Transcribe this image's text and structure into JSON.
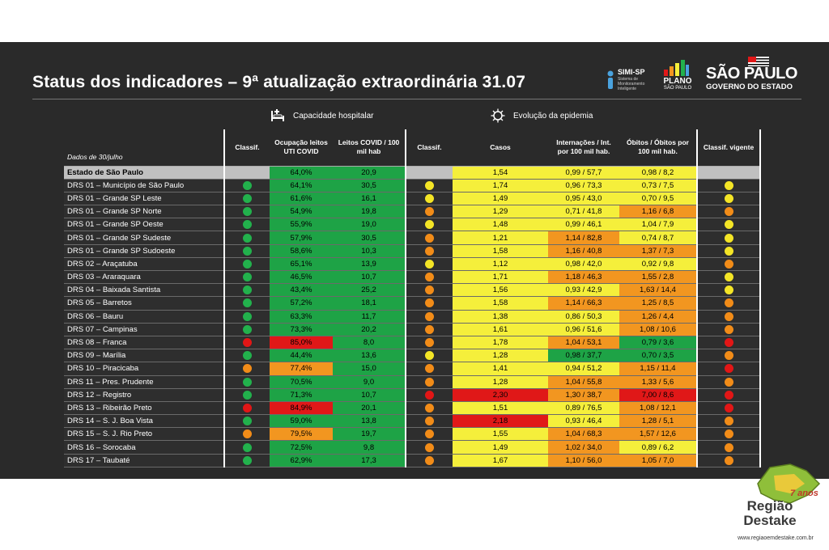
{
  "title": "Status dos indicadores – 9ª atualização extraordinária 31.07",
  "logos": {
    "simi": {
      "name": "SIMI-SP",
      "subtitle": "Sistema de Monitoramento Inteligente"
    },
    "plano": {
      "name": "PLANO",
      "subtitle": "SÃO PAULO"
    },
    "sp": {
      "name": "SÃO PAULO",
      "subtitle": "GOVERNO DO ESTADO"
    }
  },
  "sections": {
    "capacity": "Capacidade hospitalar",
    "evolution": "Evolução da epidemia"
  },
  "headers": {
    "date": "Dados de 30/julho",
    "classif1": "Classif.",
    "ocupacao": "Ocupação leitos UTI COVID",
    "leitos": "Leitos COVID / 100 mil hab",
    "classif2": "Classif.",
    "casos": "Casos",
    "internacoes": "Internações / Int. por 100 mil hab.",
    "obitos": "Óbitos / Óbitos por 100 mil hab.",
    "vigente": "Classif. vigente"
  },
  "colors": {
    "green": "#1ea346",
    "yellow": "#f5ef3b",
    "orange": "#f29620",
    "red": "#e01818",
    "dot_green": "#22b14c",
    "dot_yellow": "#f4e526",
    "dot_orange": "#f28c18",
    "dot_red": "#e21616"
  },
  "rows": [
    {
      "name": "Estado de São Paulo",
      "state": true,
      "c1": "",
      "ocup": "64,0%",
      "ocup_c": "green",
      "leitos": "20,9",
      "leitos_c": "green",
      "c2": "",
      "casos": "1,54",
      "casos_c": "yellow",
      "int": "0,99 / 57,7",
      "int_c": "yellow",
      "obi": "0,98 / 8,2",
      "obi_c": "yellow",
      "cv": ""
    },
    {
      "name": "DRS 01 – Município de São Paulo",
      "c1": "green",
      "ocup": "64,1%",
      "ocup_c": "green",
      "leitos": "30,5",
      "leitos_c": "green",
      "c2": "yellow",
      "casos": "1,74",
      "casos_c": "yellow",
      "int": "0,96 / 73,3",
      "int_c": "yellow",
      "obi": "0,73 / 7,5",
      "obi_c": "yellow",
      "cv": "yellow"
    },
    {
      "name": "DRS 01 – Grande SP Leste",
      "c1": "green",
      "ocup": "61,6%",
      "ocup_c": "green",
      "leitos": "16,1",
      "leitos_c": "green",
      "c2": "yellow",
      "casos": "1,49",
      "casos_c": "yellow",
      "int": "0,95 / 43,0",
      "int_c": "yellow",
      "obi": "0,70 / 9,5",
      "obi_c": "yellow",
      "cv": "yellow"
    },
    {
      "name": "DRS 01 – Grande SP Norte",
      "c1": "green",
      "ocup": "54,9%",
      "ocup_c": "green",
      "leitos": "19,8",
      "leitos_c": "green",
      "c2": "orange",
      "casos": "1,29",
      "casos_c": "yellow",
      "int": "0,71 / 41,8",
      "int_c": "yellow",
      "obi": "1,16 / 6,8",
      "obi_c": "orange",
      "cv": "orange"
    },
    {
      "name": "DRS 01 – Grande SP Oeste",
      "c1": "green",
      "ocup": "55,9%",
      "ocup_c": "green",
      "leitos": "19,0",
      "leitos_c": "green",
      "c2": "yellow",
      "casos": "1,48",
      "casos_c": "yellow",
      "int": "0,99 / 46,1",
      "int_c": "yellow",
      "obi": "1,04 / 7,9",
      "obi_c": "yellow",
      "cv": "yellow"
    },
    {
      "name": "DRS 01 – Grande SP Sudeste",
      "c1": "green",
      "ocup": "57,9%",
      "ocup_c": "green",
      "leitos": "30,5",
      "leitos_c": "green",
      "c2": "orange",
      "casos": "1,21",
      "casos_c": "yellow",
      "int": "1,14 / 82,8",
      "int_c": "orange",
      "obi": "0,74 / 8,7",
      "obi_c": "yellow",
      "cv": "yellow"
    },
    {
      "name": "DRS 01 – Grande SP Sudoeste",
      "c1": "green",
      "ocup": "58,6%",
      "ocup_c": "green",
      "leitos": "10,3",
      "leitos_c": "green",
      "c2": "orange",
      "casos": "1,58",
      "casos_c": "yellow",
      "int": "1,16 / 40,8",
      "int_c": "orange",
      "obi": "1,37 / 7,3",
      "obi_c": "orange",
      "cv": "yellow"
    },
    {
      "name": "DRS 02 – Araçatuba",
      "c1": "green",
      "ocup": "65,1%",
      "ocup_c": "green",
      "leitos": "13,9",
      "leitos_c": "green",
      "c2": "yellow",
      "casos": "1,12",
      "casos_c": "yellow",
      "int": "0,98 / 42,0",
      "int_c": "yellow",
      "obi": "0,92 / 9,8",
      "obi_c": "yellow",
      "cv": "orange"
    },
    {
      "name": "DRS 03 – Araraquara",
      "c1": "green",
      "ocup": "46,5%",
      "ocup_c": "green",
      "leitos": "10,7",
      "leitos_c": "green",
      "c2": "orange",
      "casos": "1,71",
      "casos_c": "yellow",
      "int": "1,18 / 46,3",
      "int_c": "orange",
      "obi": "1,55 / 2,8",
      "obi_c": "orange",
      "cv": "yellow"
    },
    {
      "name": "DRS 04 – Baixada Santista",
      "c1": "green",
      "ocup": "43,4%",
      "ocup_c": "green",
      "leitos": "25,2",
      "leitos_c": "green",
      "c2": "orange",
      "casos": "1,56",
      "casos_c": "yellow",
      "int": "0,93 / 42,9",
      "int_c": "yellow",
      "obi": "1,63 / 14,4",
      "obi_c": "orange",
      "cv": "yellow"
    },
    {
      "name": "DRS 05 – Barretos",
      "c1": "green",
      "ocup": "57,2%",
      "ocup_c": "green",
      "leitos": "18,1",
      "leitos_c": "green",
      "c2": "orange",
      "casos": "1,58",
      "casos_c": "yellow",
      "int": "1,14 / 66,3",
      "int_c": "orange",
      "obi": "1,25 / 8,5",
      "obi_c": "orange",
      "cv": "orange"
    },
    {
      "name": "DRS 06 – Bauru",
      "c1": "green",
      "ocup": "63,3%",
      "ocup_c": "green",
      "leitos": "11,7",
      "leitos_c": "green",
      "c2": "orange",
      "casos": "1,38",
      "casos_c": "yellow",
      "int": "0,86 / 50,3",
      "int_c": "yellow",
      "obi": "1,26 / 4,4",
      "obi_c": "orange",
      "cv": "orange"
    },
    {
      "name": "DRS 07 – Campinas",
      "c1": "green",
      "ocup": "73,3%",
      "ocup_c": "green",
      "leitos": "20,2",
      "leitos_c": "green",
      "c2": "orange",
      "casos": "1,61",
      "casos_c": "yellow",
      "int": "0,96 / 51,6",
      "int_c": "yellow",
      "obi": "1,08 / 10,6",
      "obi_c": "orange",
      "cv": "orange"
    },
    {
      "name": "DRS 08 – Franca",
      "c1": "red",
      "ocup": "85,0%",
      "ocup_c": "red",
      "leitos": "8,0",
      "leitos_c": "green",
      "c2": "orange",
      "casos": "1,78",
      "casos_c": "yellow",
      "int": "1,04 / 53,1",
      "int_c": "orange",
      "obi": "0,79 / 3,6",
      "obi_c": "green",
      "cv": "red"
    },
    {
      "name": "DRS 09 – Marília",
      "c1": "green",
      "ocup": "44,4%",
      "ocup_c": "green",
      "leitos": "13,6",
      "leitos_c": "green",
      "c2": "yellow",
      "casos": "1,28",
      "casos_c": "yellow",
      "int": "0,98 / 37,7",
      "int_c": "green",
      "obi": "0,70 / 3,5",
      "obi_c": "green",
      "cv": "orange"
    },
    {
      "name": "DRS 10 – Piracicaba",
      "c1": "orange",
      "ocup": "77,4%",
      "ocup_c": "orange",
      "leitos": "15,0",
      "leitos_c": "green",
      "c2": "orange",
      "casos": "1,41",
      "casos_c": "yellow",
      "int": "0,94 / 51,2",
      "int_c": "yellow",
      "obi": "1,15 / 11,4",
      "obi_c": "orange",
      "cv": "red"
    },
    {
      "name": "DRS 11 – Pres. Prudente",
      "c1": "green",
      "ocup": "70,5%",
      "ocup_c": "green",
      "leitos": "9,0",
      "leitos_c": "green",
      "c2": "orange",
      "casos": "1,28",
      "casos_c": "yellow",
      "int": "1,04 / 55,8",
      "int_c": "orange",
      "obi": "1,33 / 5,6",
      "obi_c": "orange",
      "cv": "orange"
    },
    {
      "name": "DRS 12 – Registro",
      "c1": "green",
      "ocup": "71,3%",
      "ocup_c": "green",
      "leitos": "10,7",
      "leitos_c": "green",
      "c2": "red",
      "casos": "2,30",
      "casos_c": "red",
      "int": "1,30 / 38,7",
      "int_c": "orange",
      "obi": "7,00 / 8,6",
      "obi_c": "red",
      "cv": "red"
    },
    {
      "name": "DRS 13 – Ribeirão Preto",
      "c1": "red",
      "ocup": "84,9%",
      "ocup_c": "red",
      "leitos": "20,1",
      "leitos_c": "green",
      "c2": "orange",
      "casos": "1,51",
      "casos_c": "yellow",
      "int": "0,89 / 76,5",
      "int_c": "yellow",
      "obi": "1,08 / 12,1",
      "obi_c": "orange",
      "cv": "red"
    },
    {
      "name": "DRS 14 – S. J. Boa Vista",
      "c1": "green",
      "ocup": "59,0%",
      "ocup_c": "green",
      "leitos": "13,8",
      "leitos_c": "green",
      "c2": "orange",
      "casos": "2,18",
      "casos_c": "red",
      "int": "0,93 / 46,4",
      "int_c": "yellow",
      "obi": "1,28 / 5,1",
      "obi_c": "orange",
      "cv": "orange"
    },
    {
      "name": "DRS 15 – S. J. Rio Preto",
      "c1": "orange",
      "ocup": "79,5%",
      "ocup_c": "orange",
      "leitos": "19,7",
      "leitos_c": "green",
      "c2": "orange",
      "casos": "1,55",
      "casos_c": "yellow",
      "int": "1,04 / 68,3",
      "int_c": "orange",
      "obi": "1,57 / 12,6",
      "obi_c": "orange",
      "cv": "orange"
    },
    {
      "name": "DRS 16 – Sorocaba",
      "c1": "green",
      "ocup": "72,5%",
      "ocup_c": "green",
      "leitos": "9,8",
      "leitos_c": "green",
      "c2": "orange",
      "casos": "1,49",
      "casos_c": "yellow",
      "int": "1,02 / 34,0",
      "int_c": "orange",
      "obi": "0,89 / 6,2",
      "obi_c": "yellow",
      "cv": "orange"
    },
    {
      "name": "DRS 17 – Taubaté",
      "c1": "green",
      "ocup": "62,9%",
      "ocup_c": "green",
      "leitos": "17,3",
      "leitos_c": "green",
      "c2": "orange",
      "casos": "1,67",
      "casos_c": "yellow",
      "int": "1,10 / 56,0",
      "int_c": "orange",
      "obi": "1,05 / 7,0",
      "obi_c": "orange",
      "cv": "orange"
    }
  ],
  "watermark": {
    "line1": "Região",
    "line2": "Destake",
    "badge": "7 anos",
    "url": "www.regiaoemdestake.com.br"
  }
}
